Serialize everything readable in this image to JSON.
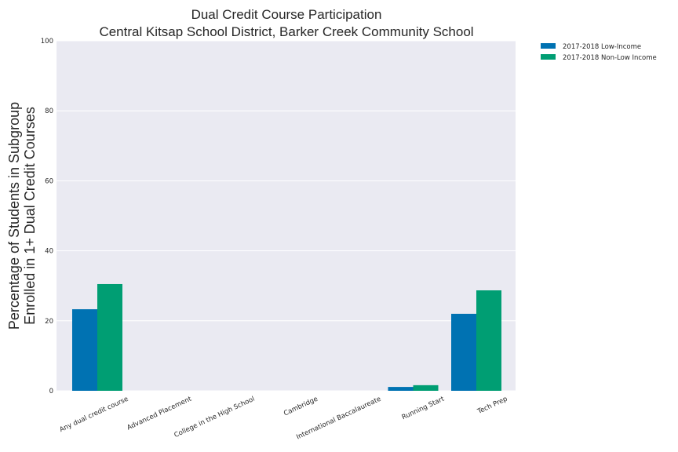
{
  "chart_data": {
    "type": "bar",
    "title": "Dual Credit Course Participation",
    "subtitle": "Central Kitsap School District, Barker Creek Community School",
    "ylabel": [
      "Percentage of Students in Subgroup",
      "Enrolled in 1+ Dual Credit Courses"
    ],
    "xlabel": "",
    "ylim": [
      0,
      100
    ],
    "yticks": [
      0,
      20,
      40,
      60,
      80,
      100
    ],
    "grid": true,
    "legend_position": "outside-top-right",
    "categories": [
      "Any dual credit course",
      "Advanced Placement",
      "College in the High School",
      "Cambridge",
      "International Baccalaureate",
      "Running Start",
      "Tech Prep"
    ],
    "series": [
      {
        "name": "2017-2018 Low-Income",
        "color": "#0072b2",
        "values": [
          23.3,
          0,
          0,
          0,
          0,
          1.1,
          22.0
        ]
      },
      {
        "name": "2017-2018 Non-Low Income",
        "color": "#009e73",
        "values": [
          30.5,
          0,
          0,
          0,
          0,
          1.6,
          28.7
        ]
      }
    ],
    "plot_background": "#eaeaf2",
    "grid_color": "#ffffff"
  }
}
